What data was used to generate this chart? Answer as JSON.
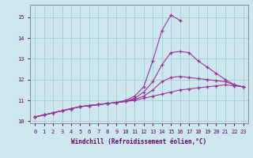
{
  "xlabel": "Windchill (Refroidissement éolien,°C)",
  "bg_color": "#cce8ee",
  "grid_color": "#aacccc",
  "line_color": "#993399",
  "xlim": [
    -0.5,
    23.5
  ],
  "ylim": [
    9.9,
    15.6
  ],
  "yticks": [
    10,
    11,
    12,
    13,
    14,
    15
  ],
  "xticks": [
    0,
    1,
    2,
    3,
    4,
    5,
    6,
    7,
    8,
    9,
    10,
    11,
    12,
    13,
    14,
    15,
    16,
    17,
    18,
    19,
    20,
    21,
    22,
    23
  ],
  "curve_nearly_linear_x": [
    0,
    1,
    2,
    3,
    4,
    5,
    6,
    7,
    8,
    9,
    10,
    11,
    12,
    13,
    14,
    15,
    16,
    17,
    18,
    19,
    20,
    21,
    22,
    23
  ],
  "curve_nearly_linear_y": [
    10.2,
    10.3,
    10.4,
    10.5,
    10.6,
    10.7,
    10.75,
    10.8,
    10.85,
    10.9,
    10.95,
    11.0,
    11.1,
    11.2,
    11.3,
    11.4,
    11.5,
    11.55,
    11.6,
    11.65,
    11.7,
    11.75,
    11.7,
    11.65
  ],
  "curve_medium_x": [
    0,
    1,
    2,
    3,
    4,
    5,
    6,
    7,
    8,
    9,
    10,
    11,
    12,
    13,
    14,
    15,
    16,
    17,
    18,
    19,
    20,
    21,
    22,
    23
  ],
  "curve_medium_y": [
    10.2,
    10.3,
    10.4,
    10.5,
    10.6,
    10.7,
    10.75,
    10.8,
    10.85,
    10.9,
    10.95,
    11.05,
    11.2,
    11.5,
    11.9,
    12.1,
    12.15,
    12.1,
    12.05,
    12.0,
    11.95,
    11.9,
    11.75,
    11.65
  ],
  "curve_high_x": [
    0,
    1,
    2,
    3,
    4,
    5,
    6,
    7,
    8,
    9,
    10,
    11,
    12,
    13,
    14,
    15,
    16,
    17,
    18,
    19,
    20,
    21,
    22,
    23
  ],
  "curve_high_y": [
    10.2,
    10.3,
    10.4,
    10.5,
    10.6,
    10.7,
    10.75,
    10.8,
    10.85,
    10.9,
    10.95,
    11.1,
    11.4,
    11.9,
    12.7,
    13.3,
    13.35,
    13.3,
    12.9,
    12.6,
    12.3,
    12.0,
    11.75,
    11.65
  ],
  "curve_peak_x": [
    0,
    1,
    2,
    3,
    4,
    5,
    6,
    7,
    8,
    9,
    10,
    11,
    12,
    13,
    14,
    15,
    16,
    17,
    18,
    19,
    20,
    21,
    22,
    23
  ],
  "curve_peak_y": [
    10.2,
    10.3,
    10.4,
    10.5,
    10.6,
    10.7,
    10.75,
    10.8,
    10.85,
    10.9,
    11.0,
    11.2,
    11.65,
    12.9,
    14.35,
    15.1,
    14.85,
    null,
    null,
    null,
    null,
    null,
    null,
    null
  ]
}
